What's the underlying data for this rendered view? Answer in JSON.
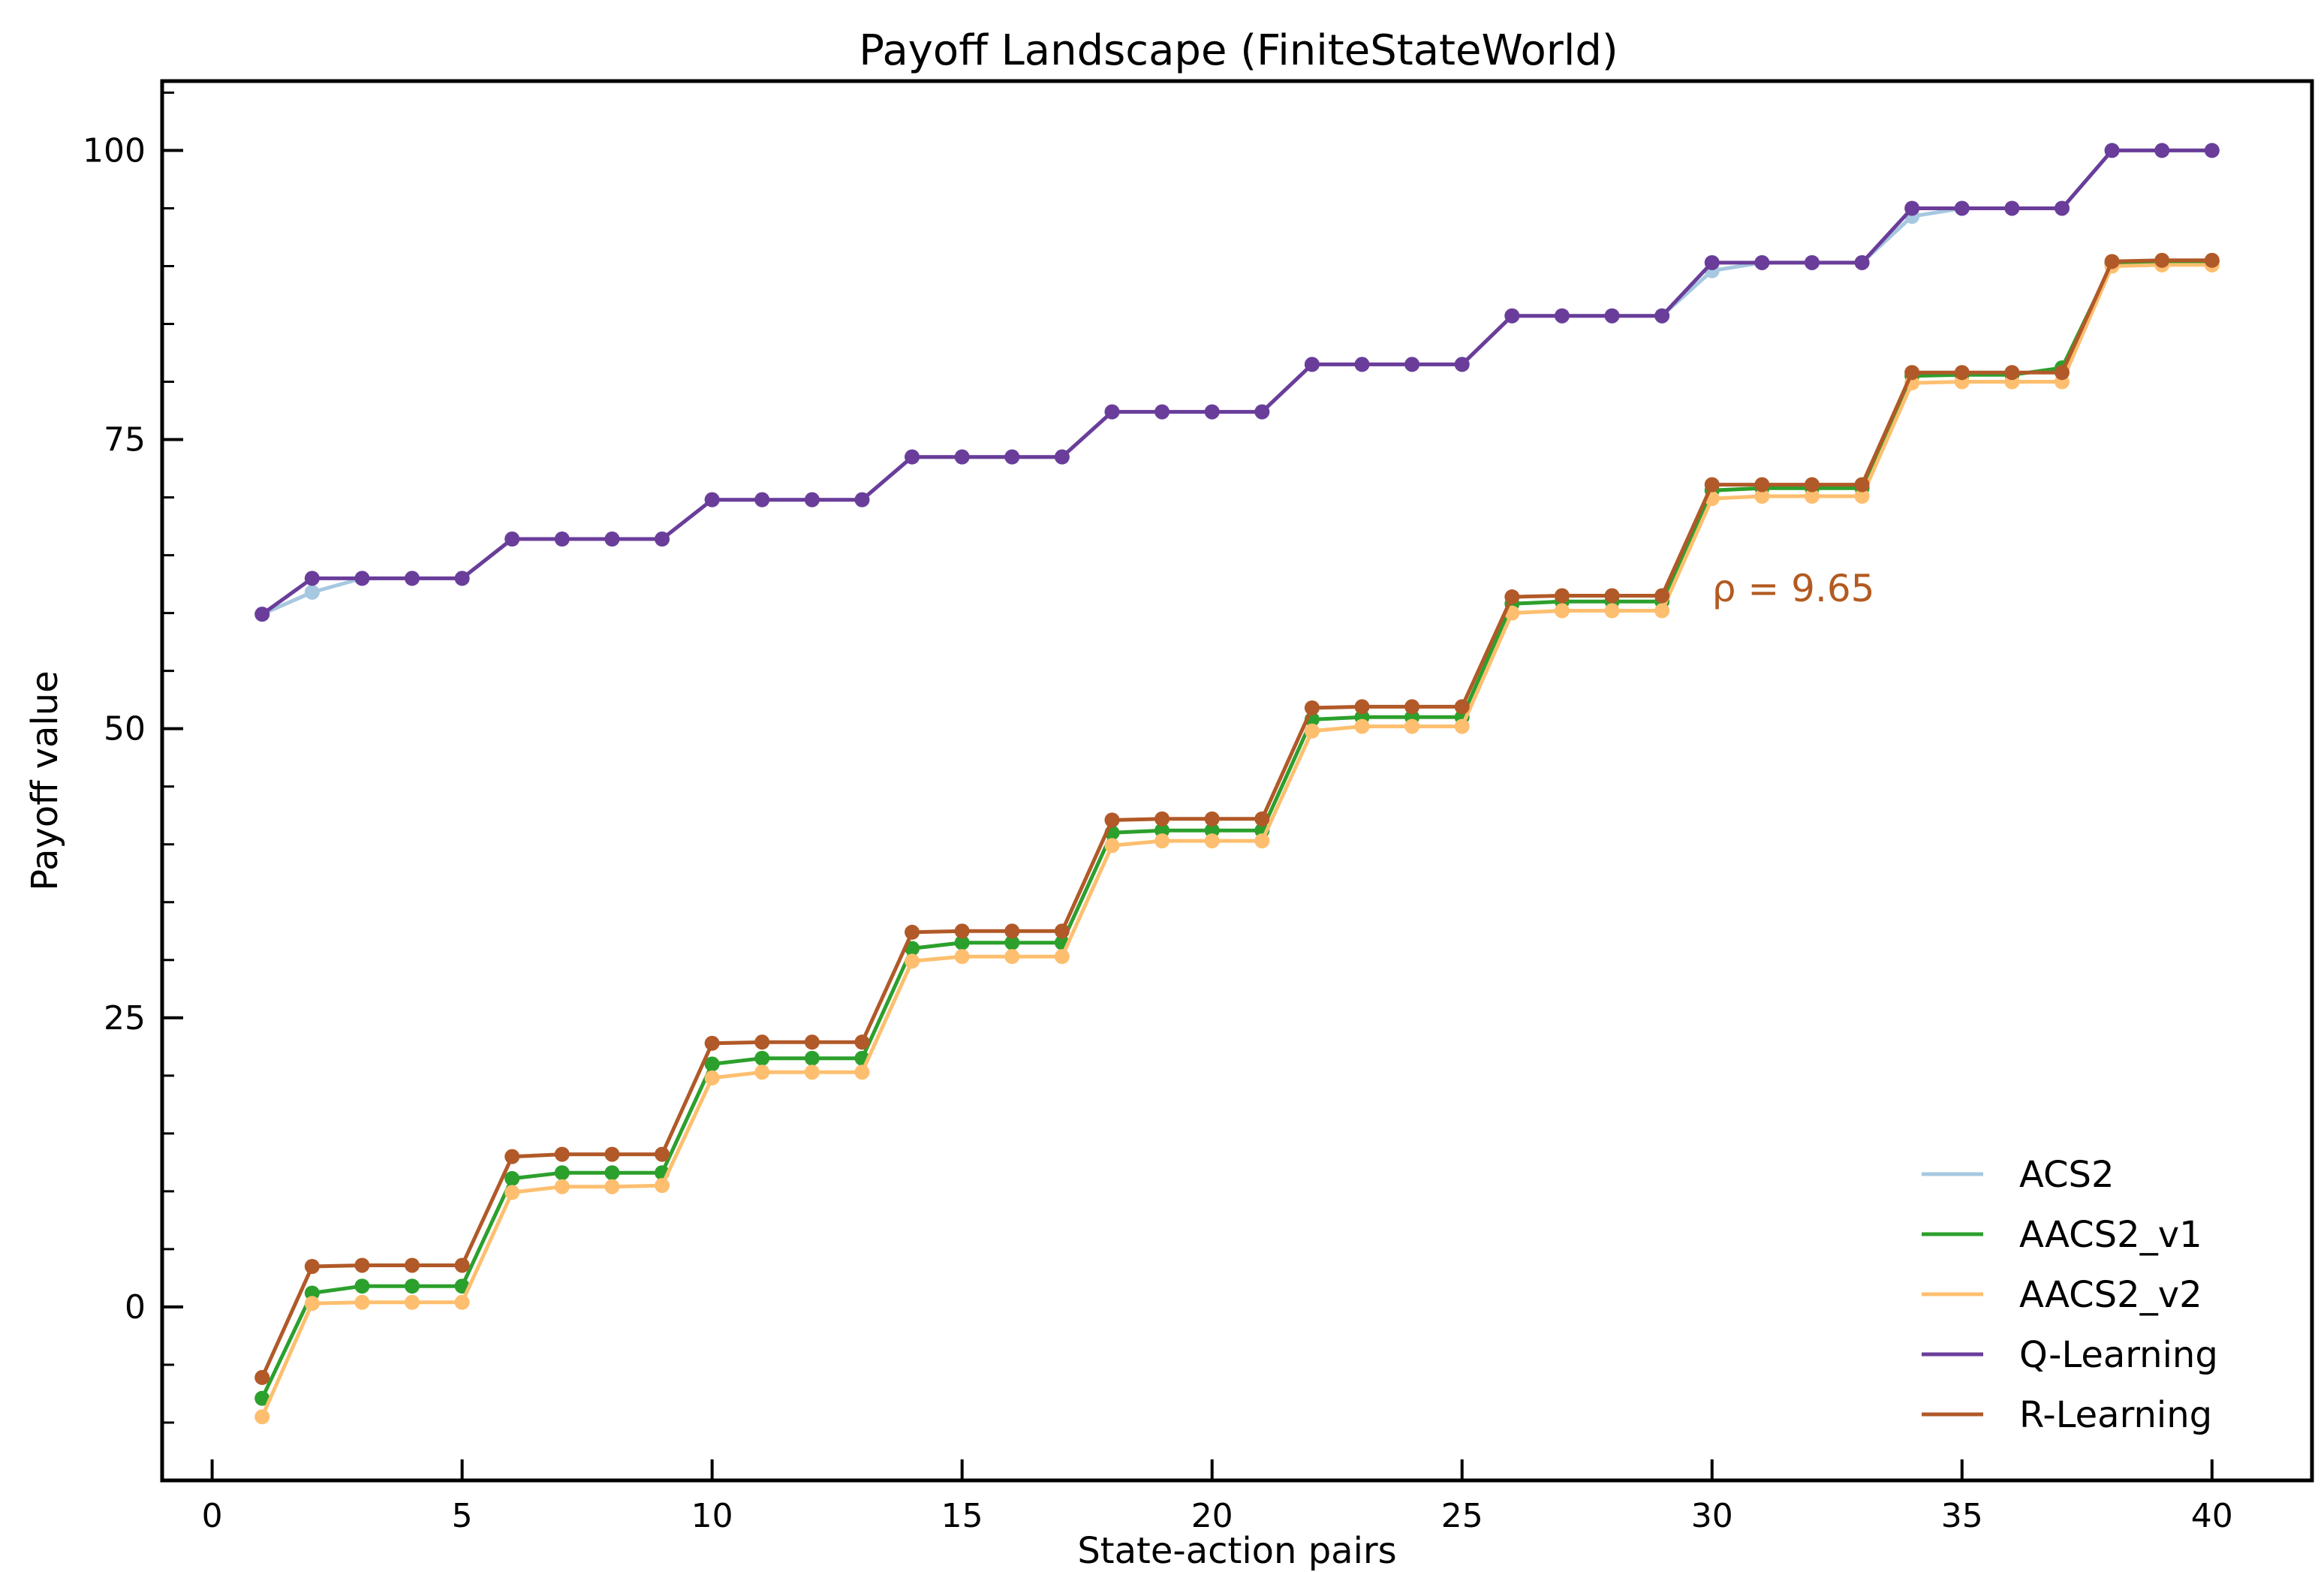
{
  "chart_data": {
    "type": "line",
    "title": "Payoff Landscape (FiniteStateWorld)",
    "xlabel": "State-action pairs",
    "ylabel": "Payoff value",
    "xlim": [
      -1,
      42
    ],
    "ylim": [
      -15,
      106
    ],
    "xticks": [
      0,
      5,
      10,
      15,
      20,
      25,
      30,
      35,
      40
    ],
    "yticks": [
      0,
      25,
      50,
      75,
      100
    ],
    "legend_position": "lower right",
    "grid": false,
    "annotation": {
      "text": "ρ = 9.65",
      "x": 30,
      "y": 61,
      "color": "#b35a20"
    },
    "x": [
      1,
      2,
      3,
      4,
      5,
      6,
      7,
      8,
      9,
      10,
      11,
      12,
      13,
      14,
      15,
      16,
      17,
      18,
      19,
      20,
      21,
      22,
      23,
      24,
      25,
      26,
      27,
      28,
      29,
      30,
      31,
      32,
      33,
      34,
      35,
      36,
      37,
      38,
      39,
      40
    ],
    "series": [
      {
        "name": "ACS2",
        "color": "#a6c8e0",
        "values": [
          59.9,
          61.8,
          63.0,
          63.0,
          63.0,
          66.4,
          66.4,
          66.4,
          66.4,
          69.8,
          69.8,
          69.8,
          69.8,
          73.5,
          73.5,
          73.5,
          73.5,
          77.4,
          77.4,
          77.4,
          77.4,
          81.5,
          81.5,
          81.5,
          81.5,
          85.7,
          85.7,
          85.7,
          85.7,
          89.6,
          90.3,
          90.3,
          90.3,
          94.3,
          95.0,
          95.0,
          95.0,
          100,
          100,
          100
        ]
      },
      {
        "name": "AACS2_v1",
        "color": "#2ca02c",
        "values": [
          -7.9,
          1.2,
          1.8,
          1.8,
          1.8,
          11.1,
          11.6,
          11.6,
          11.6,
          21.0,
          21.5,
          21.5,
          21.5,
          31.0,
          31.5,
          31.5,
          31.5,
          41.0,
          41.2,
          41.2,
          41.2,
          50.8,
          51.0,
          51.0,
          51.0,
          60.8,
          61.0,
          61.0,
          61.0,
          70.6,
          70.8,
          70.8,
          70.8,
          80.5,
          80.6,
          80.6,
          81.2,
          90.2,
          90.4,
          90.4
        ]
      },
      {
        "name": "AACS2_v2",
        "color": "#fdbf6f",
        "values": [
          -9.5,
          0.3,
          0.4,
          0.4,
          0.4,
          9.9,
          10.4,
          10.4,
          10.5,
          19.8,
          20.3,
          20.3,
          20.3,
          29.9,
          30.3,
          30.3,
          30.3,
          39.9,
          40.3,
          40.3,
          40.3,
          49.8,
          50.2,
          50.2,
          50.2,
          60.0,
          60.2,
          60.2,
          60.2,
          69.9,
          70.1,
          70.1,
          70.1,
          79.9,
          80.0,
          80.0,
          80.0,
          90.0,
          90.1,
          90.1
        ]
      },
      {
        "name": "Q-Learning",
        "color": "#6a3d9a",
        "values": [
          59.9,
          63.0,
          63.0,
          63.0,
          63.0,
          66.4,
          66.4,
          66.4,
          66.4,
          69.8,
          69.8,
          69.8,
          69.8,
          73.5,
          73.5,
          73.5,
          73.5,
          77.4,
          77.4,
          77.4,
          77.4,
          81.5,
          81.5,
          81.5,
          81.5,
          85.7,
          85.7,
          85.7,
          85.7,
          90.3,
          90.3,
          90.3,
          90.3,
          95.0,
          95.0,
          95.0,
          95.0,
          100,
          100,
          100
        ]
      },
      {
        "name": "R-Learning",
        "color": "#b15928",
        "values": [
          -6.1,
          3.5,
          3.6,
          3.6,
          3.6,
          13.0,
          13.2,
          13.2,
          13.2,
          22.8,
          22.9,
          22.9,
          22.9,
          32.4,
          32.5,
          32.5,
          32.5,
          42.1,
          42.2,
          42.2,
          42.2,
          51.8,
          51.9,
          51.9,
          51.9,
          61.4,
          61.5,
          61.5,
          61.5,
          71.1,
          71.1,
          71.1,
          71.1,
          80.8,
          80.8,
          80.8,
          80.8,
          90.4,
          90.5,
          90.5
        ]
      }
    ]
  }
}
